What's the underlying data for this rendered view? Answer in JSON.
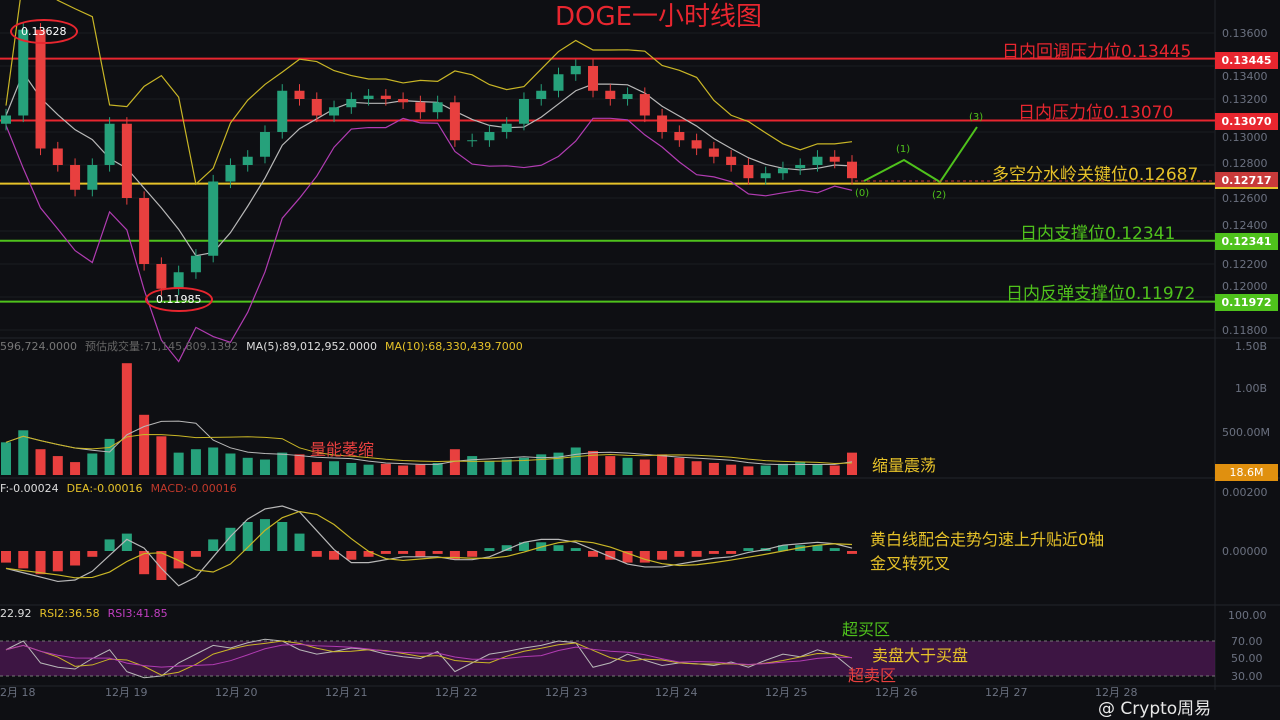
{
  "title": "DOGE一小时线图",
  "colors": {
    "up": "#26a17b",
    "down": "#e8403f",
    "resistance": "#e8262f",
    "pivot": "#e6c229",
    "support": "#4fc21c",
    "ma_yellow": "#c9b626",
    "ma_white": "#b8b8b8",
    "boll_lower": "#b13cb2",
    "rsi_zone": "#4a1750"
  },
  "price_levels": [
    {
      "label": "日内回调压力位0.13445",
      "value": 0.13445,
      "tag": "0.13445",
      "kind": "resistance"
    },
    {
      "label": "日内压力位0.13070",
      "value": 0.1307,
      "tag": "0.13070",
      "kind": "resistance"
    },
    {
      "label": "多空分水岭关键位0.12687",
      "value": 0.12687,
      "tag": "0.12717",
      "kind": "pivot"
    },
    {
      "label": "日内支撑位0.12341",
      "value": 0.12341,
      "tag": "0.12341",
      "kind": "support"
    },
    {
      "label": "日内反弹支撑位0.11972",
      "value": 0.11972,
      "tag": "0.11972",
      "kind": "support"
    }
  ],
  "high_label": "0.13628",
  "low_label": "0.11985",
  "wave_labels": [
    "(0)",
    "(1)",
    "(2)",
    "(3)"
  ],
  "price_axis": [
    "0.13600",
    "0.13400",
    "0.13200",
    "0.13000",
    "0.12800",
    "0.12600",
    "0.12400",
    "0.12200",
    "0.12000",
    "0.11800"
  ],
  "volume_header": {
    "vol": "596,724.0000",
    "est_label": "预估成交量:71,145,809.1392",
    "ma5": "MA(5):89,012,952.0000",
    "ma10": "MA(10):68,330,439.7000"
  },
  "volume_axis": [
    "1.50B",
    "1.00B",
    "500.00M"
  ],
  "volume_tag": "18.6M",
  "macd_header": {
    "dif": "F:-0.00024",
    "dea": "DEA:-0.00016",
    "macd": "MACD:-0.00016"
  },
  "macd_axis": [
    "0.00200",
    "0.00000"
  ],
  "rsi_header": {
    "rsi1": "22.92",
    "rsi2": "RSI2:36.58",
    "rsi3": "RSI3:41.85"
  },
  "rsi_axis": [
    "100.00",
    "70.00",
    "50.00",
    "30.00"
  ],
  "notes": {
    "volume_shrink": "量能萎缩",
    "shrink_oscillate": "缩量震荡",
    "macd_note1": "黄白线配合走势匀速上升贴近0轴",
    "macd_note2": "金叉转死叉",
    "overbought": "超买区",
    "sell_gt_buy": "卖盘大于买盘",
    "oversold": "超卖区"
  },
  "dates": [
    "2月 18",
    "12月 19",
    "12月 20",
    "12月 21",
    "12月 22",
    "12月 23",
    "12月 24",
    "12月 25",
    "12月 26",
    "12月 27",
    "12月 28"
  ],
  "watermark": "@ Crypto周易",
  "chart_data": {
    "type": "candlestick",
    "title": "DOGE一小时线图",
    "ylim": [
      0.118,
      0.137
    ],
    "close": [
      0.131,
      0.1362,
      0.129,
      0.128,
      0.1265,
      0.128,
      0.1305,
      0.126,
      0.122,
      0.1205,
      0.1215,
      0.1225,
      0.127,
      0.128,
      0.1285,
      0.13,
      0.1325,
      0.132,
      0.131,
      0.1315,
      0.132,
      0.1322,
      0.132,
      0.1318,
      0.1312,
      0.1318,
      0.1295,
      0.1295,
      0.13,
      0.1305,
      0.132,
      0.1325,
      0.1335,
      0.134,
      0.1325,
      0.132,
      0.1323,
      0.131,
      0.13,
      0.1295,
      0.129,
      0.1285,
      0.128,
      0.1272,
      0.1275,
      0.1278,
      0.128,
      0.1285,
      0.1282,
      0.1272
    ],
    "volume_m": [
      380,
      520,
      300,
      220,
      150,
      250,
      420,
      1300,
      700,
      450,
      260,
      300,
      320,
      250,
      200,
      180,
      260,
      240,
      150,
      160,
      140,
      120,
      130,
      110,
      120,
      140,
      300,
      220,
      160,
      180,
      200,
      240,
      260,
      320,
      280,
      220,
      200,
      180,
      240,
      200,
      160,
      140,
      120,
      100,
      110,
      130,
      150,
      120,
      110,
      260
    ],
    "macd_hist": [
      -0.0004,
      -0.0006,
      -0.0008,
      -0.0007,
      -0.0005,
      -0.0002,
      0.0004,
      0.0006,
      -0.0008,
      -0.001,
      -0.0006,
      -0.0002,
      0.0004,
      0.0008,
      0.001,
      0.0011,
      0.001,
      0.0006,
      -0.0002,
      -0.0003,
      -0.0003,
      -0.0002,
      -0.0001,
      -0.0001,
      -0.0002,
      -0.0001,
      -0.0003,
      -0.0002,
      0.0001,
      0.0002,
      0.0003,
      0.0003,
      0.0002,
      0.0001,
      -0.0002,
      -0.0003,
      -0.0004,
      -0.0004,
      -0.0003,
      -0.0002,
      -0.0002,
      -0.0001,
      -0.0001,
      0.0001,
      0.0001,
      0.0002,
      0.0002,
      0.0002,
      0.0001,
      -0.0001
    ],
    "rsi": [
      60,
      70,
      45,
      40,
      38,
      50,
      60,
      35,
      28,
      30,
      45,
      55,
      65,
      62,
      68,
      72,
      70,
      60,
      55,
      58,
      62,
      60,
      55,
      52,
      50,
      58,
      35,
      45,
      55,
      58,
      62,
      65,
      70,
      68,
      40,
      45,
      55,
      48,
      42,
      45,
      44,
      42,
      46,
      40,
      48,
      55,
      52,
      60,
      54,
      38
    ],
    "levels": [
      0.13445,
      0.1307,
      0.12687,
      0.12341,
      0.11972
    ]
  }
}
